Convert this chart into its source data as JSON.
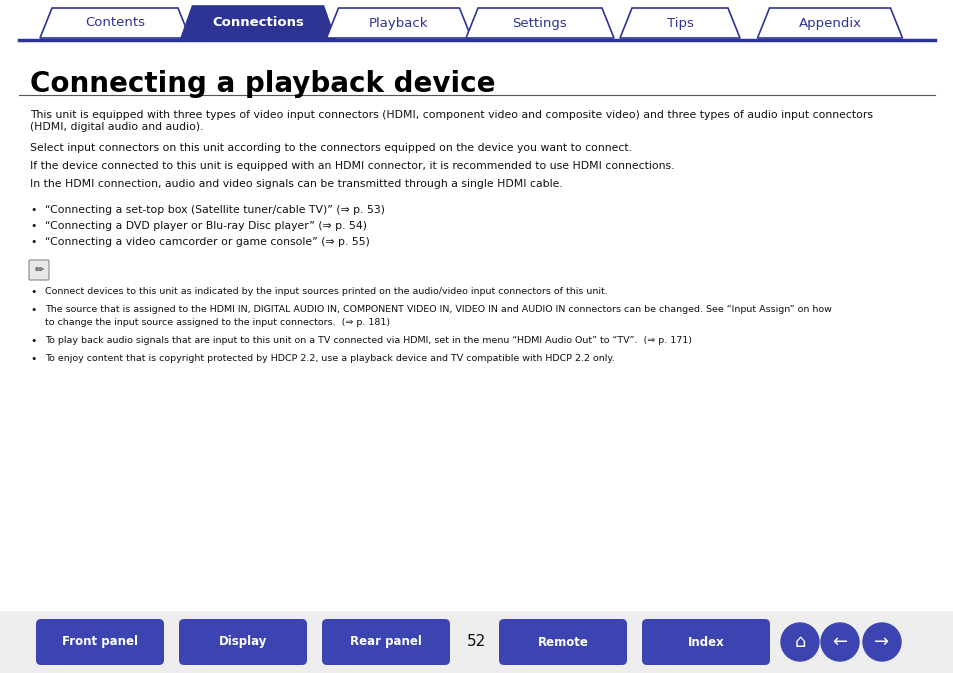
{
  "bg_color": "#ffffff",
  "nav_tabs": [
    "Contents",
    "Connections",
    "Playback",
    "Settings",
    "Tips",
    "Appendix"
  ],
  "nav_active": 1,
  "nav_color_active": "#2d3494",
  "nav_color_inactive": "#ffffff",
  "nav_text_color_active": "#ffffff",
  "nav_text_color_inactive": "#2d3494",
  "nav_border_color": "#2d3494",
  "title": "Connecting a playback device",
  "title_color": "#000000",
  "body_paragraphs": [
    "This unit is equipped with three types of video input connectors (HDMI, component video and composite video) and three types of audio input connectors\n(HDMI, digital audio and audio).",
    "Select input connectors on this unit according to the connectors equipped on the device you want to connect.",
    "If the device connected to this unit is equipped with an HDMI connector, it is recommended to use HDMI connections.",
    "In the HDMI connection, audio and video signals can be transmitted through a single HDMI cable."
  ],
  "bullet_items": [
    "“Connecting a set-top box (Satellite tuner/cable TV)” (⇒ p. 53)",
    "“Connecting a DVD player or Blu-ray Disc player” (⇒ p. 54)",
    "“Connecting a video camcorder or game console” (⇒ p. 55)"
  ],
  "bullet_link_texts": [
    "p. 53",
    "p. 54",
    "p. 55"
  ],
  "note_bullets": [
    "Connect devices to this unit as indicated by the input sources printed on the audio/video input connectors of this unit.",
    "The source that is assigned to the HDMI IN, DIGITAL AUDIO IN, COMPONENT VIDEO IN, VIDEO IN and AUDIO IN connectors can be changed. See “Input Assign” on how\nto change the input source assigned to the input connectors.  (⇒ p. 181)",
    "To play back audio signals that are input to this unit on a TV connected via HDMI, set in the menu “HDMI Audio Out” to “TV”.  (⇒ p. 171)",
    "To enjoy content that is copyright protected by HDCP 2.2, use a playback device and TV compatible with HDCP 2.2 only."
  ],
  "bottom_buttons": [
    "Front panel",
    "Display",
    "Rear panel",
    "Remote",
    "Index"
  ],
  "page_number": "52",
  "btn_color": "#3b44b0",
  "btn_text_color": "#ffffff"
}
